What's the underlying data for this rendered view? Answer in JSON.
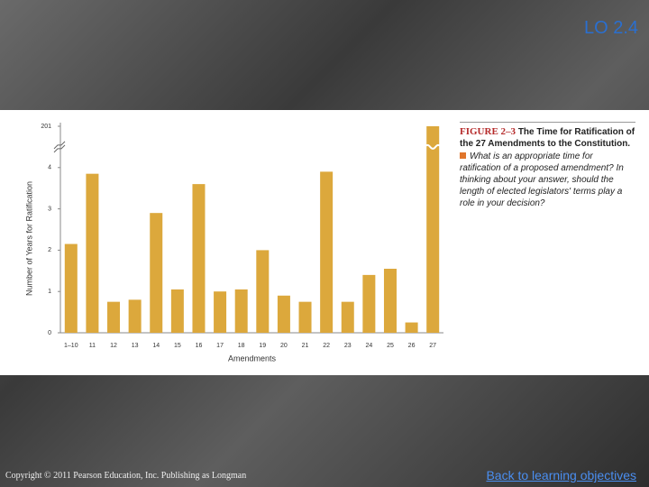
{
  "slide": {
    "objective": "LO 2.4",
    "copyright": "Copyright © 2011 Pearson Education, Inc. Publishing as Longman",
    "link": "Back to learning objectives"
  },
  "chart_data": {
    "type": "bar",
    "caption_label": "FIGURE 2–3",
    "caption_title": "The Time for Ratification of the 27 Amendments to the Constitution.",
    "caption_question": "What is an appropriate time for ratification of a proposed amendment? In thinking about your answer, should the length of elected legislators' terms play a role in your decision?",
    "x_label": "Amendments",
    "y_label": "Number of Years for Ratification",
    "categories": [
      "1–10",
      "11",
      "12",
      "13",
      "14",
      "15",
      "16",
      "17",
      "18",
      "19",
      "20",
      "21",
      "22",
      "23",
      "24",
      "25",
      "26",
      "27"
    ],
    "values": [
      2.15,
      3.85,
      0.75,
      0.8,
      2.9,
      1.05,
      3.6,
      1.0,
      1.05,
      2.0,
      0.9,
      0.75,
      3.9,
      0.75,
      1.4,
      1.55,
      0.25,
      201
    ],
    "color": "#dca83c",
    "ylim": [
      0,
      201
    ],
    "yticks": [
      0,
      1,
      2,
      3,
      4,
      201
    ],
    "axis_break": true
  }
}
